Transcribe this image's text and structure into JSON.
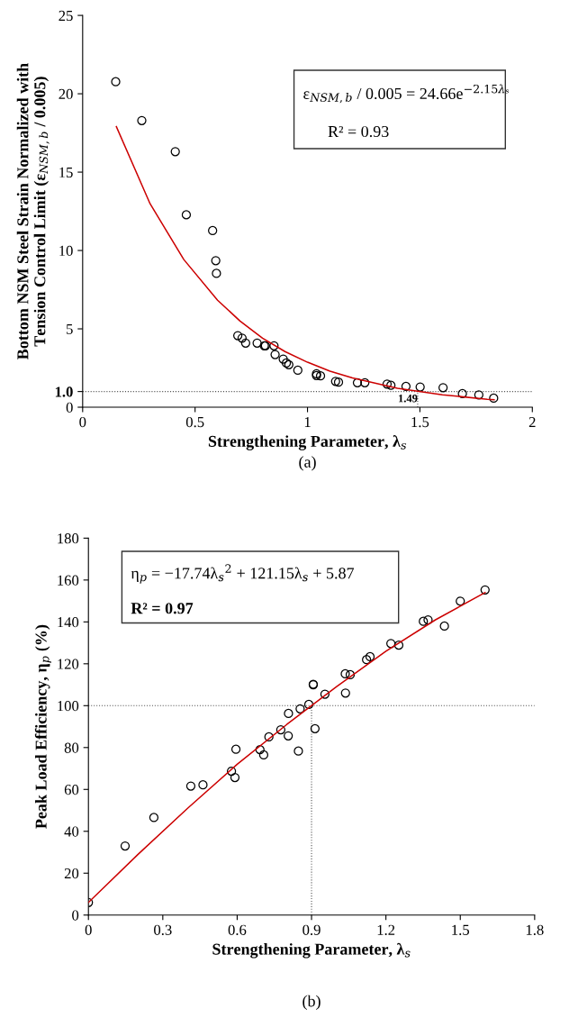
{
  "chart_data": [
    {
      "type": "scatter",
      "xlabel": "Strengthening Parameter, λ$_{s}$",
      "ylabel": "Bottom NSM Steel Strain Normalized with\nTension Control Limit (ε$_{NSM,b}$ / 0.005)",
      "xlim": [
        0,
        2
      ],
      "xticks": [
        0,
        0.5,
        1,
        1.5,
        2
      ],
      "ylim": [
        0,
        25
      ],
      "yticks": [
        0,
        {
          "value": 1,
          "label": "1.0"
        },
        5,
        10,
        15,
        20,
        25
      ],
      "grid": false,
      "legend": false,
      "series": [
        {
          "color": "#000000",
          "marker": "circle",
          "x": [
            0.147,
            0.263,
            0.412,
            0.461,
            0.578,
            0.592,
            0.595,
            0.69,
            0.709,
            0.725,
            0.776,
            0.808,
            0.813,
            0.851,
            0.856,
            0.892,
            0.906,
            0.917,
            0.957,
            1.04,
            1.04,
            1.058,
            1.125,
            1.138,
            1.222,
            1.255,
            1.354,
            1.371,
            1.438,
            1.501,
            1.603,
            1.689,
            1.762,
            1.828
          ],
          "values": [
            20.77,
            18.29,
            16.31,
            12.28,
            11.27,
            9.35,
            8.54,
            4.57,
            4.41,
            4.09,
            4.09,
            3.92,
            3.92,
            3.92,
            3.36,
            3.07,
            2.82,
            2.71,
            2.36,
            2.13,
            2.02,
            2.0,
            1.65,
            1.6,
            1.56,
            1.56,
            1.48,
            1.4,
            1.33,
            1.29,
            1.25,
            0.87,
            0.79,
            0.58
          ]
        },
        {
          "type": "line",
          "color": "#cc0000",
          "x": [
            0.15,
            0.3,
            0.45,
            0.6,
            0.7,
            0.8,
            0.9,
            1.0,
            1.1,
            1.2,
            1.4,
            1.6,
            1.8,
            1.83
          ],
          "values": [
            17.9,
            12.98,
            9.42,
            6.83,
            5.5,
            4.4,
            3.55,
            2.87,
            2.3,
            1.87,
            1.21,
            0.79,
            0.51,
            0.48
          ]
        }
      ],
      "ref_lines": [
        {
          "axis": "y",
          "value": 1,
          "color": "#555555",
          "line_style": "dotted"
        },
        {
          "axis": "x",
          "value": 1.49,
          "label": "1.49",
          "color": "#555555",
          "line_style": "dotted"
        }
      ],
      "annotations": [
        "ε$_{NSM,b}$ / 0.005 = 24.66e$^{−2.15λₛ}$",
        "R² = 0.93",
        "(a)"
      ]
    },
    {
      "type": "scatter",
      "xlabel": "Strengthening Parameter, λ$_{s}$",
      "ylabel": "Peak Load Efficiency, η$_{p}$ (%)",
      "xlim": [
        0,
        1.8
      ],
      "xticks": [
        0,
        0.3,
        0.6,
        0.9,
        1.2,
        1.5,
        1.8
      ],
      "ylim": [
        0,
        180
      ],
      "yticks": [
        0,
        20,
        40,
        60,
        80,
        100,
        120,
        140,
        160,
        180
      ],
      "grid": false,
      "legend": false,
      "series": [
        {
          "color": "#000000",
          "marker": "circle",
          "x": [
            0,
            0.148,
            0.264,
            0.413,
            0.462,
            0.577,
            0.591,
            0.595,
            0.692,
            0.707,
            0.728,
            0.776,
            0.807,
            0.806,
            0.847,
            0.854,
            0.889,
            0.907,
            0.907,
            0.914,
            0.954,
            1.036,
            1.056,
            1.037,
            1.122,
            1.136,
            1.22,
            1.252,
            1.351,
            1.37,
            1.436,
            1.5,
            1.6
          ],
          "values": [
            6.0,
            33.0,
            46.6,
            61.6,
            62.2,
            68.7,
            65.7,
            79.2,
            79.0,
            76.5,
            85.1,
            88.5,
            96.3,
            85.6,
            78.3,
            98.5,
            100.6,
            110.0,
            110.2,
            89.0,
            105.5,
            115.2,
            114.8,
            106.0,
            122.0,
            123.4,
            129.7,
            128.9,
            140.3,
            141.0,
            138.0,
            149.9,
            155.3
          ]
        },
        {
          "type": "line",
          "color": "#cc0000",
          "x": [
            0,
            0.2,
            0.4,
            0.6,
            0.8,
            1.0,
            1.2,
            1.4,
            1.6
          ],
          "values": [
            6,
            29,
            51,
            72,
            91,
            109,
            126,
            141,
            154
          ]
        }
      ],
      "ref_lines": [
        {
          "axis": "y",
          "value": 100,
          "color": "#555555",
          "line_style": "dotted"
        },
        {
          "axis": "x",
          "value": 0.9,
          "color": "#555555",
          "line_style": "dotted"
        }
      ],
      "annotations": [
        "η$_{p}$ = −17.74λ$_{s}$$^{2}$ + 121.15λ$_{s}$ + 5.87",
        "R² = 0.97",
        "(b)"
      ]
    }
  ]
}
